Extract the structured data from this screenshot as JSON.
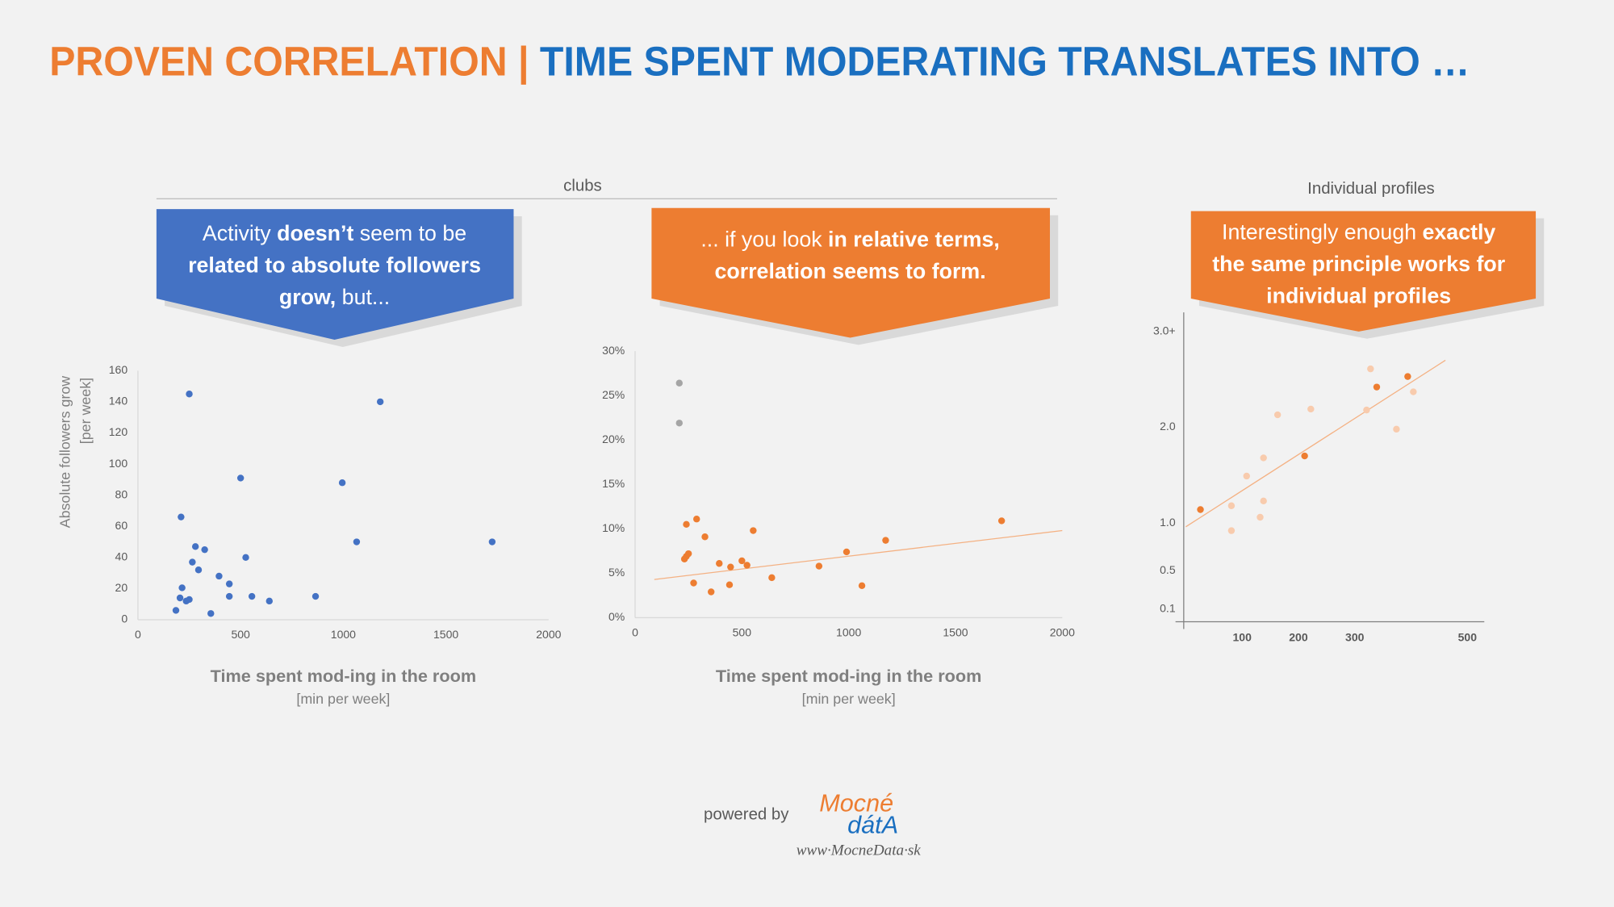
{
  "header": {
    "title": [
      {
        "text": "PROVEN CORRELATION |",
        "color": "#ed7d31"
      },
      {
        "text": " TIME SPENT MODERATING TRANSLATES INTO …",
        "color": "#1a6fc0"
      }
    ]
  },
  "groups": [
    {
      "label": "clubs"
    },
    {
      "label": "Individual profiles"
    }
  ],
  "callouts": [
    {
      "color": "#4472c4",
      "lines": [
        [
          {
            "text": "Activity ",
            "bold": false
          },
          {
            "text": "doesn’t",
            "bold": true
          },
          {
            "text": " seem to be",
            "bold": false
          }
        ],
        [
          {
            "text": "related to absolute followers",
            "bold": true
          }
        ],
        [
          {
            "text": "grow,",
            "bold": true
          },
          {
            "text": " but...",
            "bold": false
          }
        ]
      ]
    },
    {
      "color": "#ed7d31",
      "lines": [
        [
          {
            "text": "... if you look ",
            "bold": false
          },
          {
            "text": "in relative terms,",
            "bold": true
          }
        ],
        [
          {
            "text": "correlation seems to form.",
            "bold": true
          }
        ]
      ]
    },
    {
      "color": "#ed7d31",
      "lines": [
        [
          {
            "text": "Interestingly enough ",
            "bold": false
          },
          {
            "text": "exactly",
            "bold": true
          }
        ],
        [
          {
            "text": "the same principle works for",
            "bold": true
          }
        ],
        [
          {
            "text": "individual profiles",
            "bold": true
          }
        ]
      ]
    }
  ],
  "chart_data": [
    {
      "type": "scatter",
      "xlabel": "Time spent mod-ing in the room",
      "xlabel_unit": "[min per week]",
      "ylabel": "Absolute followers grow",
      "ylabel_unit": "[per week]",
      "xlim": [
        0,
        2000
      ],
      "xticks": [
        0,
        500,
        1000,
        1500,
        2000
      ],
      "ylim": [
        0,
        160
      ],
      "yticks": [
        0,
        20,
        40,
        60,
        80,
        100,
        120,
        140,
        160
      ],
      "series": [
        {
          "color": "#4472c4",
          "x": [
            185,
            210,
            215,
            205,
            235,
            250,
            250,
            265,
            280,
            295,
            325,
            355,
            395,
            445,
            445,
            500,
            525,
            555,
            640,
            865,
            995,
            1065,
            1180,
            1725
          ],
          "values": [
            6,
            66,
            20.5,
            14,
            12,
            13,
            145,
            37,
            47,
            32,
            45,
            4,
            28,
            23,
            15,
            91,
            40,
            15,
            12,
            15,
            88,
            50,
            140,
            50
          ]
        }
      ]
    },
    {
      "type": "scatter",
      "xlabel": "Time spent mod-ing in the room",
      "xlabel_unit": "[min per week]",
      "xlim": [
        0,
        2000
      ],
      "xticks": [
        0,
        500,
        1000,
        1500,
        2000
      ],
      "ylim": [
        0,
        30
      ],
      "yticks": [
        {
          "value": 0,
          "label": "0%"
        },
        {
          "value": 5,
          "label": "5%"
        },
        {
          "value": 10,
          "label": "10%"
        },
        {
          "value": 15,
          "label": "15%"
        },
        {
          "value": 20,
          "label": "20%"
        },
        {
          "value": 25,
          "label": "25%"
        },
        {
          "value": 30,
          "label": "30%"
        }
      ],
      "series": [
        {
          "color": "#ed7d31",
          "x": [
            240,
            288,
            231,
            240,
            250,
            327,
            274,
            356,
            394,
            447,
            442,
            500,
            524,
            553,
            640,
            861,
            990,
            1062,
            1173,
            1716
          ],
          "values": [
            10.5,
            11.1,
            6.6,
            6.9,
            7.2,
            9.1,
            3.9,
            2.9,
            6.1,
            5.7,
            3.7,
            6.4,
            5.9,
            9.8,
            4.5,
            5.8,
            7.4,
            3.6,
            8.7,
            10.9
          ]
        },
        {
          "color": "#a5a5a5",
          "x": [
            207,
            207
          ],
          "values": [
            26.4,
            21.9
          ]
        }
      ],
      "trendline": {
        "color": "#f4b183",
        "x": [
          90,
          2000
        ],
        "values": [
          4.3,
          9.8
        ]
      }
    },
    {
      "type": "scatter",
      "xlim": [
        0,
        530
      ],
      "xticks": [
        100,
        200,
        300,
        500
      ],
      "ylim": [
        0,
        3.2
      ],
      "yticks": [
        0.1,
        0.5,
        {
          "value": 1,
          "label": "1.0"
        },
        {
          "value": 2,
          "label": "2.0"
        },
        {
          "value": 3,
          "label": "3.0+"
        }
      ],
      "series": [
        {
          "color": "#ed7d31",
          "x": [
            26,
            211,
            339,
            394
          ],
          "values": [
            1.14,
            1.7,
            2.42,
            2.53
          ]
        },
        {
          "color": "#f8cbad",
          "x": [
            81,
            81,
            108,
            132,
            138,
            138,
            163,
            222,
            321,
            328,
            374,
            404
          ],
          "values": [
            1.18,
            0.92,
            1.49,
            1.06,
            1.23,
            1.68,
            2.13,
            2.19,
            2.18,
            2.61,
            1.98,
            2.37
          ]
        }
      ],
      "trendline": {
        "color": "#f4b183",
        "x": [
          0,
          461
        ],
        "values": [
          0.96,
          2.7
        ]
      }
    }
  ],
  "footer": {
    "powered_by": "powered by",
    "logo_top": "Mocné",
    "logo_bottom": "dátA",
    "url": "www·MocneData·sk"
  }
}
